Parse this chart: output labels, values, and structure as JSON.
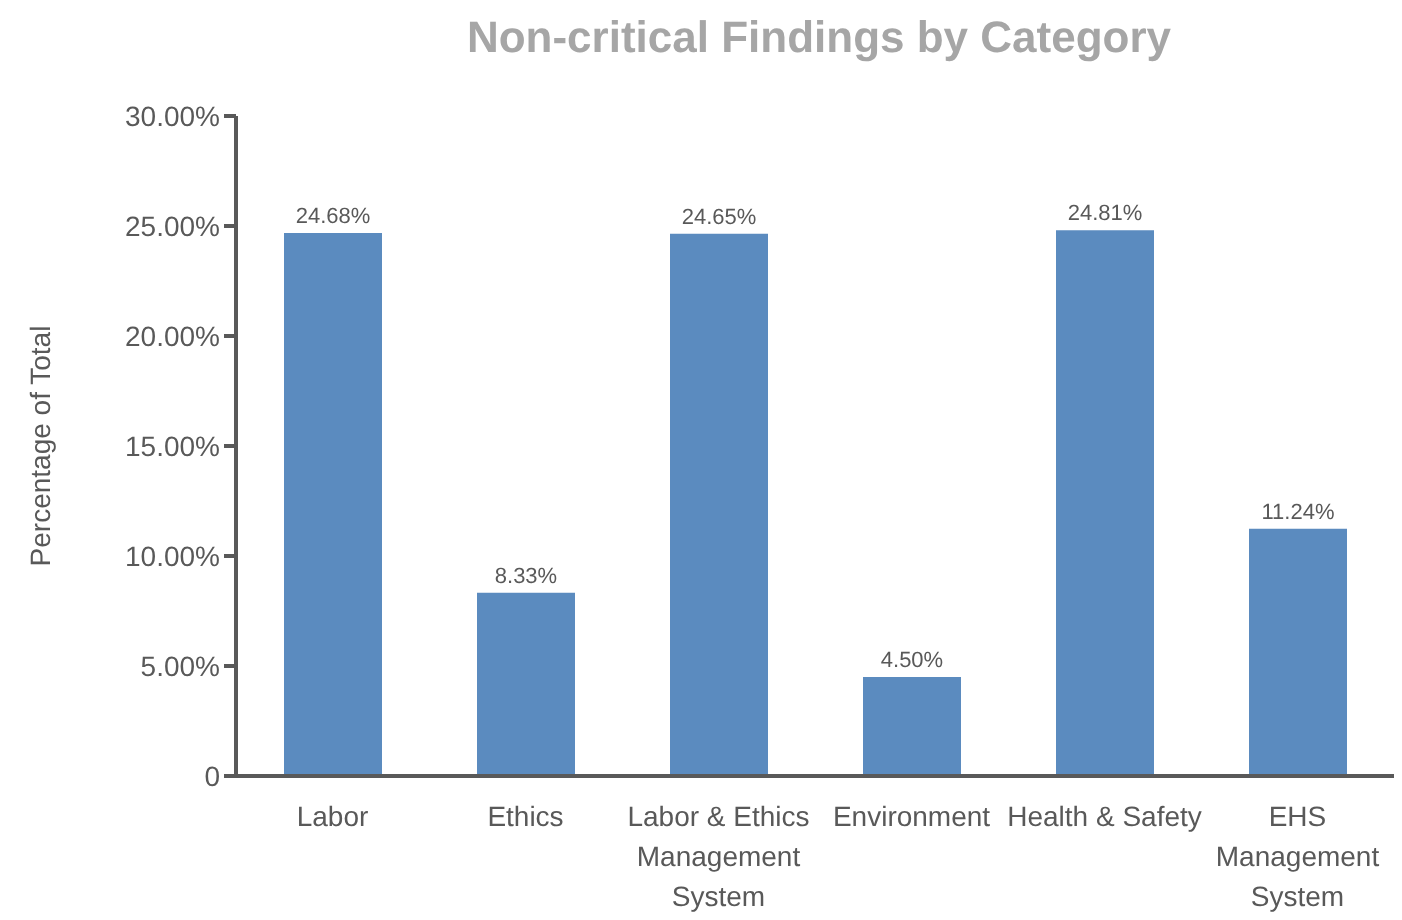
{
  "chart_data": {
    "type": "bar",
    "title": "Non-critical Findings by Category",
    "ylabel": "Percentage of Total",
    "categories": [
      "Labor",
      "Ethics",
      "Labor & Ethics Management System",
      "Environment",
      "Health & Safety",
      "EHS Management System"
    ],
    "values": [
      24.68,
      8.33,
      24.65,
      4.5,
      24.81,
      11.24
    ],
    "value_labels": [
      "24.68%",
      "8.33%",
      "24.65%",
      "4.50%",
      "24.81%",
      "11.24%"
    ],
    "color": "#5b8bbf",
    "ylim": [
      0,
      30
    ],
    "yticks": [
      {
        "value": 0,
        "label": "0"
      },
      {
        "value": 5,
        "label": "5.00%"
      },
      {
        "value": 10,
        "label": "10.00%"
      },
      {
        "value": 15,
        "label": "15.00%"
      },
      {
        "value": 20,
        "label": "20.00%"
      },
      {
        "value": 25,
        "label": "25.00%"
      },
      {
        "value": 30,
        "label": "30.00%"
      }
    ],
    "grid": false,
    "legend": false
  }
}
